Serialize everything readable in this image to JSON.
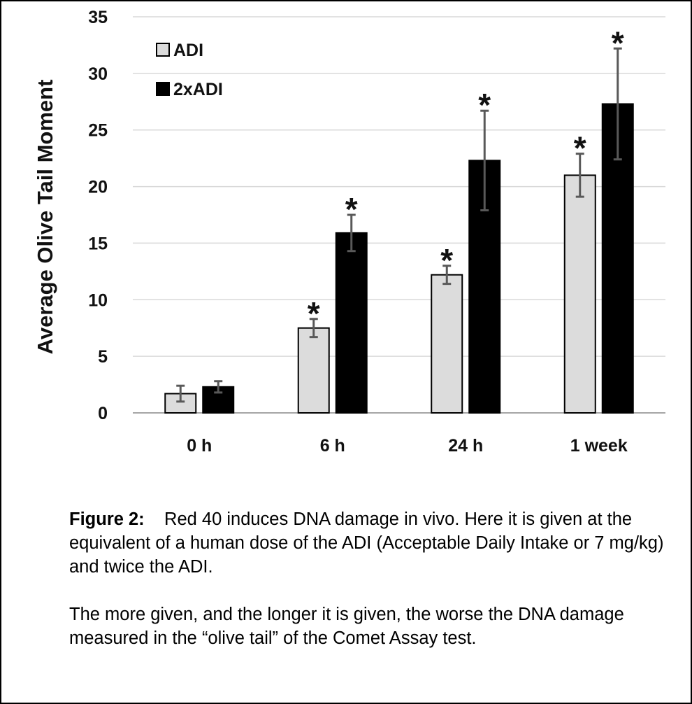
{
  "chart_data": {
    "type": "bar",
    "categories": [
      "0 h",
      "6 h",
      "24 h",
      "1 week"
    ],
    "series": [
      {
        "name": "ADI",
        "values": [
          1.7,
          7.5,
          12.2,
          21.0
        ],
        "error": [
          0.7,
          0.8,
          0.8,
          1.9
        ],
        "significant": [
          false,
          true,
          true,
          true
        ]
      },
      {
        "name": "2xADI",
        "values": [
          2.3,
          15.9,
          22.3,
          27.3
        ],
        "error": [
          0.5,
          1.6,
          4.4,
          4.9
        ],
        "significant": [
          false,
          true,
          true,
          true
        ]
      }
    ],
    "ylabel": "Average Olive Tail Moment",
    "xlabel": "",
    "ylim": [
      0,
      35
    ],
    "yticks": [
      0,
      5,
      10,
      15,
      20,
      25,
      30,
      35
    ],
    "significance_marker": "*",
    "grid": true,
    "legend_position": "top-left",
    "colors": {
      "ADI": "#dcdcdc",
      "2xADI": "#000000"
    }
  },
  "caption": {
    "label": "Figure 2:",
    "paragraph1": "Red 40 induces DNA damage in vivo.  Here it is given at the equivalent of a human dose of the ADI (Acceptable Daily Intake or 7 mg/kg) and twice the ADI.",
    "paragraph2": "The more given, and the longer it is given, the worse the DNA damage measured in the “olive tail” of the Comet Assay test."
  }
}
